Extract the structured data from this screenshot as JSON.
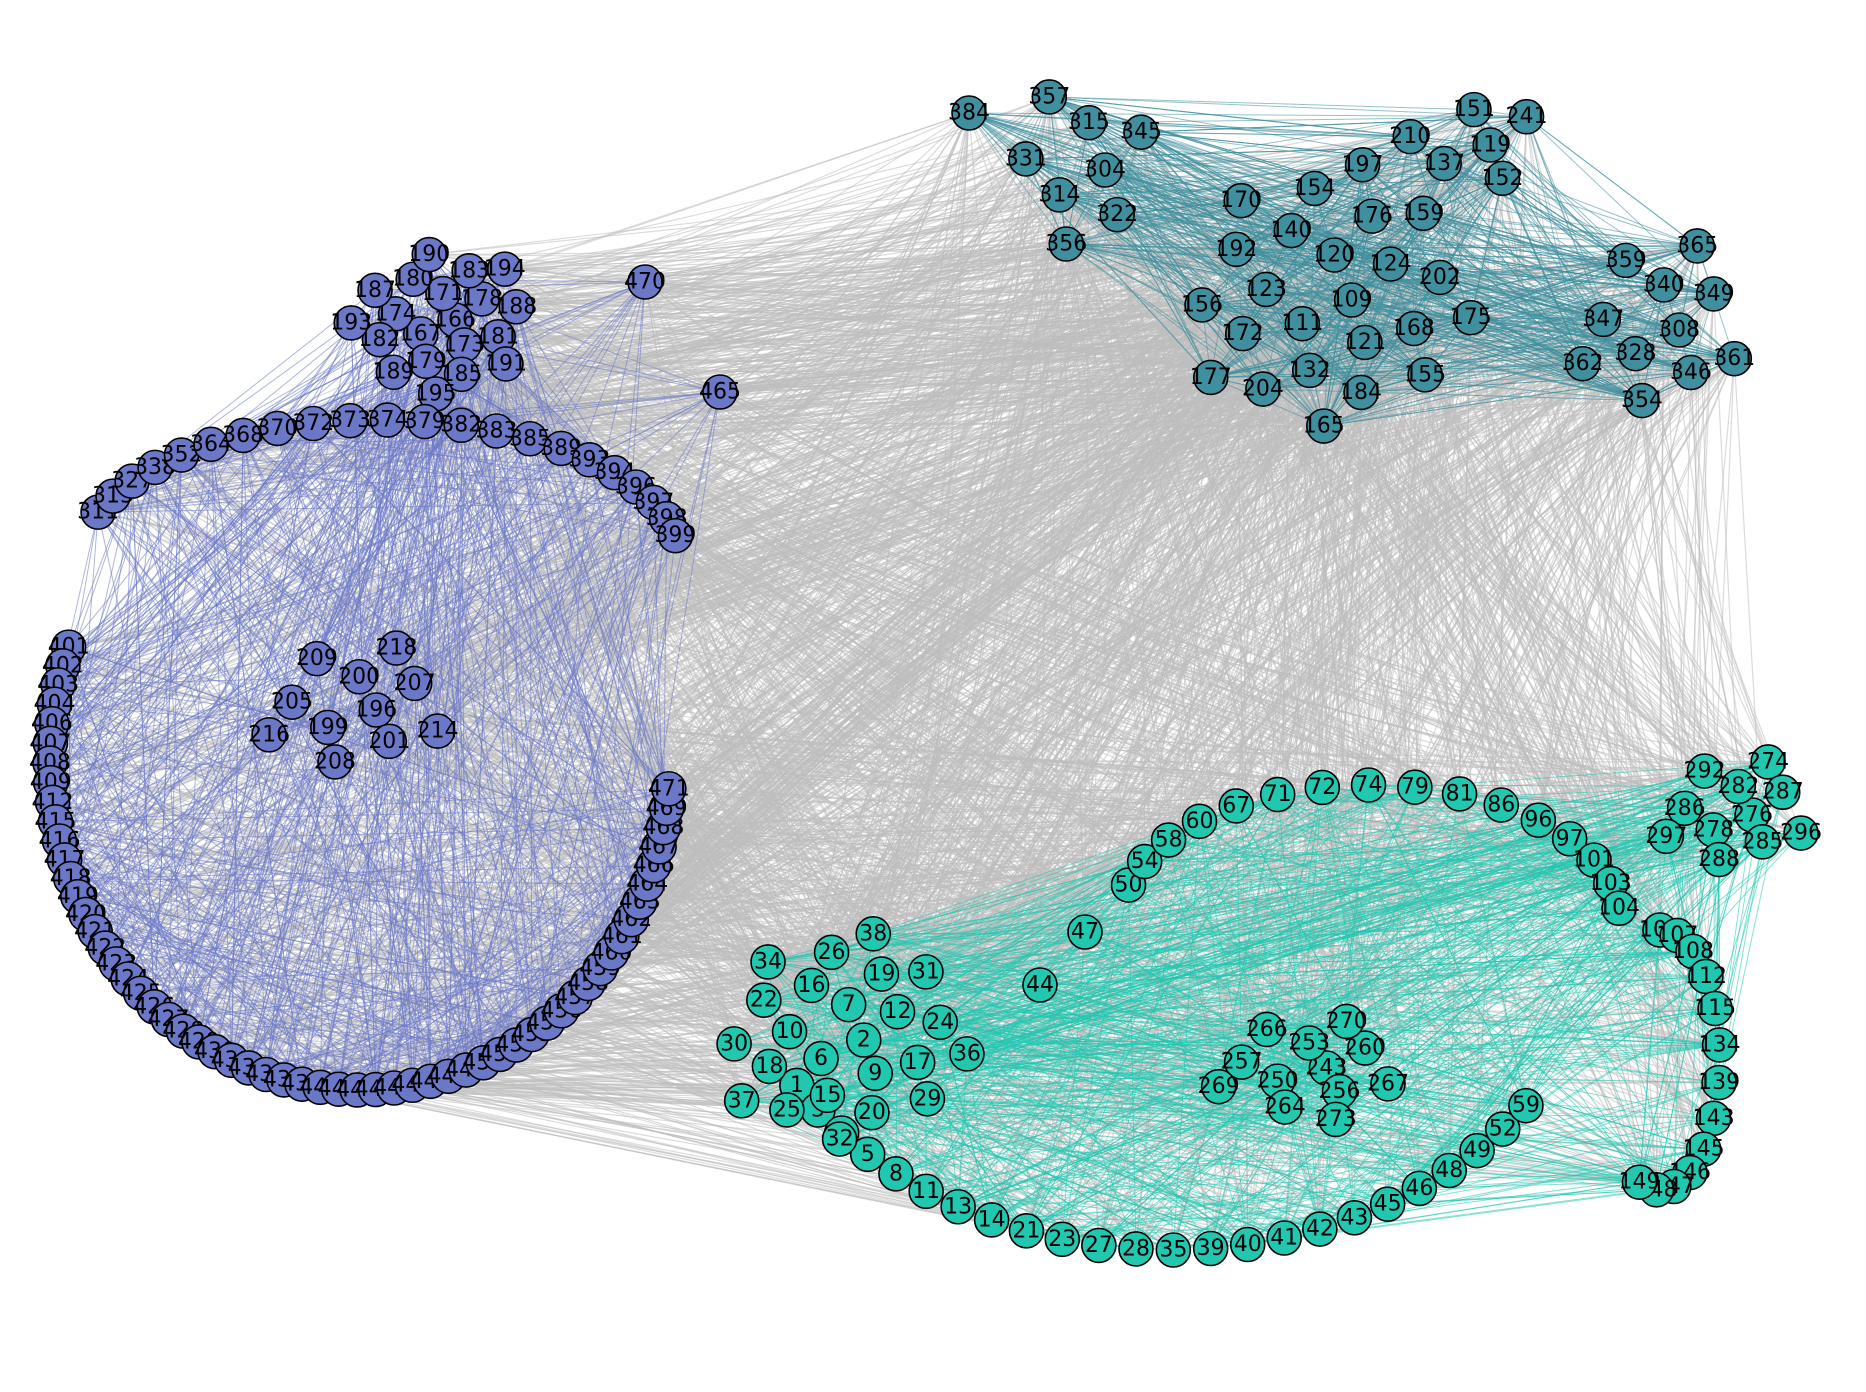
{
  "colors": {
    "background": "#ffffff",
    "between_cluster_edges": "#bebebe",
    "cluster_violet": "#6b78c8",
    "cluster_teal": "#3f8f9e",
    "cluster_turquoise": "#22c7b0",
    "node_outline": "#000000",
    "label_text": "#000000"
  },
  "graph": {
    "clusters": [
      {
        "id": "violet",
        "label_range": [
          166,
          200
        ],
        "anchor_label": "470"
      },
      {
        "id": "teal",
        "label_range": [
          109,
          165
        ],
        "anchor_label": "384"
      },
      {
        "id": "turquoise",
        "label_range": [
          1,
          108
        ],
        "anchor_label": "44"
      }
    ],
    "nodes": [
      {
        "label": "1",
        "c": 2
      },
      {
        "label": "2",
        "c": 2
      },
      {
        "label": "3",
        "c": 2
      },
      {
        "label": "4",
        "c": 2
      },
      {
        "label": "5",
        "c": 2
      },
      {
        "label": "6",
        "c": 2
      },
      {
        "label": "7",
        "c": 2
      },
      {
        "label": "8",
        "c": 2
      },
      {
        "label": "9",
        "c": 2
      },
      {
        "label": "10",
        "c": 2
      },
      {
        "label": "11",
        "c": 2
      },
      {
        "label": "12",
        "c": 2
      },
      {
        "label": "13",
        "c": 2
      },
      {
        "label": "14",
        "c": 2
      },
      {
        "label": "15",
        "c": 2
      },
      {
        "label": "16",
        "c": 2
      },
      {
        "label": "17",
        "c": 2
      },
      {
        "label": "18",
        "c": 2
      },
      {
        "label": "19",
        "c": 2
      },
      {
        "label": "20",
        "c": 2
      },
      {
        "label": "21",
        "c": 2
      },
      {
        "label": "22",
        "c": 2
      },
      {
        "label": "23",
        "c": 2
      },
      {
        "label": "24",
        "c": 2
      },
      {
        "label": "25",
        "c": 2
      },
      {
        "label": "26",
        "c": 2
      },
      {
        "label": "27",
        "c": 2
      },
      {
        "label": "28",
        "c": 2
      },
      {
        "label": "29",
        "c": 2
      },
      {
        "label": "30",
        "c": 2
      },
      {
        "label": "31",
        "c": 2
      },
      {
        "label": "32",
        "c": 2
      },
      {
        "label": "34",
        "c": 2
      },
      {
        "label": "35",
        "c": 2
      },
      {
        "label": "36",
        "c": 2
      },
      {
        "label": "37",
        "c": 2
      },
      {
        "label": "38",
        "c": 2
      },
      {
        "label": "39",
        "c": 2
      },
      {
        "label": "40",
        "c": 2
      },
      {
        "label": "41",
        "c": 2
      },
      {
        "label": "42",
        "c": 2
      },
      {
        "label": "43",
        "c": 2
      },
      {
        "label": "44",
        "c": 2
      },
      {
        "label": "45",
        "c": 2
      },
      {
        "label": "46",
        "c": 2
      },
      {
        "label": "47",
        "c": 2
      },
      {
        "label": "48",
        "c": 2
      },
      {
        "label": "49",
        "c": 2
      },
      {
        "label": "50",
        "c": 2
      },
      {
        "label": "52",
        "c": 2
      },
      {
        "label": "54",
        "c": 2
      },
      {
        "label": "58",
        "c": 2
      },
      {
        "label": "59",
        "c": 2
      },
      {
        "label": "60",
        "c": 2
      },
      {
        "label": "67",
        "c": 2
      },
      {
        "label": "71",
        "c": 2
      },
      {
        "label": "72",
        "c": 2
      },
      {
        "label": "74",
        "c": 2
      },
      {
        "label": "79",
        "c": 2
      },
      {
        "label": "81",
        "c": 2
      },
      {
        "label": "86",
        "c": 2
      },
      {
        "label": "96",
        "c": 2
      },
      {
        "label": "97",
        "c": 2
      },
      {
        "label": "101",
        "c": 2
      },
      {
        "label": "103",
        "c": 2
      },
      {
        "label": "104",
        "c": 2
      },
      {
        "label": "106",
        "c": 2
      },
      {
        "label": "107",
        "c": 2
      },
      {
        "label": "108",
        "c": 2
      },
      {
        "label": "112",
        "c": 2
      },
      {
        "label": "115",
        "c": 2
      },
      {
        "label": "134",
        "c": 2
      },
      {
        "label": "139",
        "c": 2
      },
      {
        "label": "143",
        "c": 2
      },
      {
        "label": "145",
        "c": 2
      },
      {
        "label": "146",
        "c": 2
      },
      {
        "label": "147",
        "c": 2
      },
      {
        "label": "148",
        "c": 2
      },
      {
        "label": "149",
        "c": 2
      },
      {
        "label": "243",
        "c": 2
      },
      {
        "label": "250",
        "c": 2
      },
      {
        "label": "253",
        "c": 2
      },
      {
        "label": "256",
        "c": 2
      },
      {
        "label": "257",
        "c": 2
      },
      {
        "label": "260",
        "c": 2
      },
      {
        "label": "264",
        "c": 2
      },
      {
        "label": "266",
        "c": 2
      },
      {
        "label": "267",
        "c": 2
      },
      {
        "label": "269",
        "c": 2
      },
      {
        "label": "270",
        "c": 2
      },
      {
        "label": "273",
        "c": 2
      },
      {
        "label": "274",
        "c": 2
      },
      {
        "label": "276",
        "c": 2
      },
      {
        "label": "278",
        "c": 2
      },
      {
        "label": "282",
        "c": 2
      },
      {
        "label": "285",
        "c": 2
      },
      {
        "label": "286",
        "c": 2
      },
      {
        "label": "287",
        "c": 2
      },
      {
        "label": "288",
        "c": 2
      },
      {
        "label": "292",
        "c": 2
      },
      {
        "label": "296",
        "c": 2
      },
      {
        "label": "297",
        "c": 2
      },
      {
        "label": "109",
        "c": 1
      },
      {
        "label": "111",
        "c": 1
      },
      {
        "label": "119",
        "c": 1
      },
      {
        "label": "120",
        "c": 1
      },
      {
        "label": "121",
        "c": 1
      },
      {
        "label": "123",
        "c": 1
      },
      {
        "label": "124",
        "c": 1
      },
      {
        "label": "132",
        "c": 1
      },
      {
        "label": "137",
        "c": 1
      },
      {
        "label": "140",
        "c": 1
      },
      {
        "label": "151",
        "c": 1
      },
      {
        "label": "152",
        "c": 1
      },
      {
        "label": "154",
        "c": 1
      },
      {
        "label": "155",
        "c": 1
      },
      {
        "label": "156",
        "c": 1
      },
      {
        "label": "159",
        "c": 1
      },
      {
        "label": "165",
        "c": 1
      },
      {
        "label": "168",
        "c": 1
      },
      {
        "label": "170",
        "c": 1
      },
      {
        "label": "172",
        "c": 1
      },
      {
        "label": "175",
        "c": 1
      },
      {
        "label": "176",
        "c": 1
      },
      {
        "label": "177",
        "c": 1
      },
      {
        "label": "184",
        "c": 1
      },
      {
        "label": "192",
        "c": 1
      },
      {
        "label": "197",
        "c": 1
      },
      {
        "label": "202",
        "c": 1
      },
      {
        "label": "204",
        "c": 1
      },
      {
        "label": "210",
        "c": 1
      },
      {
        "label": "241",
        "c": 1
      },
      {
        "label": "304",
        "c": 1
      },
      {
        "label": "308",
        "c": 1
      },
      {
        "label": "314",
        "c": 1
      },
      {
        "label": "315",
        "c": 1
      },
      {
        "label": "322",
        "c": 1
      },
      {
        "label": "328",
        "c": 1
      },
      {
        "label": "331",
        "c": 1
      },
      {
        "label": "340",
        "c": 1
      },
      {
        "label": "345",
        "c": 1
      },
      {
        "label": "346",
        "c": 1
      },
      {
        "label": "347",
        "c": 1
      },
      {
        "label": "349",
        "c": 1
      },
      {
        "label": "354",
        "c": 1
      },
      {
        "label": "356",
        "c": 1
      },
      {
        "label": "357",
        "c": 1
      },
      {
        "label": "359",
        "c": 1
      },
      {
        "label": "361",
        "c": 1
      },
      {
        "label": "362",
        "c": 1
      },
      {
        "label": "365",
        "c": 1
      },
      {
        "label": "384",
        "c": 1
      },
      {
        "label": "166",
        "c": 0
      },
      {
        "label": "167",
        "c": 0
      },
      {
        "label": "171",
        "c": 0
      },
      {
        "label": "173",
        "c": 0
      },
      {
        "label": "174",
        "c": 0
      },
      {
        "label": "178",
        "c": 0
      },
      {
        "label": "179",
        "c": 0
      },
      {
        "label": "180",
        "c": 0
      },
      {
        "label": "181",
        "c": 0
      },
      {
        "label": "182",
        "c": 0
      },
      {
        "label": "183",
        "c": 0
      },
      {
        "label": "185",
        "c": 0
      },
      {
        "label": "187",
        "c": 0
      },
      {
        "label": "188",
        "c": 0
      },
      {
        "label": "189",
        "c": 0
      },
      {
        "label": "190",
        "c": 0
      },
      {
        "label": "191",
        "c": 0
      },
      {
        "label": "193",
        "c": 0
      },
      {
        "label": "194",
        "c": 0
      },
      {
        "label": "195",
        "c": 0
      },
      {
        "label": "196",
        "c": 0
      },
      {
        "label": "199",
        "c": 0
      },
      {
        "label": "200",
        "c": 0
      },
      {
        "label": "201",
        "c": 0
      },
      {
        "label": "205",
        "c": 0
      },
      {
        "label": "207",
        "c": 0
      },
      {
        "label": "208",
        "c": 0
      },
      {
        "label": "209",
        "c": 0
      },
      {
        "label": "214",
        "c": 0
      },
      {
        "label": "216",
        "c": 0
      },
      {
        "label": "218",
        "c": 0
      },
      {
        "label": "311",
        "c": 0
      },
      {
        "label": "313",
        "c": 0
      },
      {
        "label": "327",
        "c": 0
      },
      {
        "label": "338",
        "c": 0
      },
      {
        "label": "352",
        "c": 0
      },
      {
        "label": "364",
        "c": 0
      },
      {
        "label": "368",
        "c": 0
      },
      {
        "label": "370",
        "c": 0
      },
      {
        "label": "372",
        "c": 0
      },
      {
        "label": "373",
        "c": 0
      },
      {
        "label": "374",
        "c": 0
      },
      {
        "label": "379",
        "c": 0
      },
      {
        "label": "382",
        "c": 0
      },
      {
        "label": "383",
        "c": 0
      },
      {
        "label": "385",
        "c": 0
      },
      {
        "label": "389",
        "c": 0
      },
      {
        "label": "393",
        "c": 0
      },
      {
        "label": "394",
        "c": 0
      },
      {
        "label": "396",
        "c": 0
      },
      {
        "label": "397",
        "c": 0
      },
      {
        "label": "398",
        "c": 0
      },
      {
        "label": "399",
        "c": 0
      },
      {
        "label": "401",
        "c": 0
      },
      {
        "label": "402",
        "c": 0
      },
      {
        "label": "403",
        "c": 0
      },
      {
        "label": "404",
        "c": 0
      },
      {
        "label": "406",
        "c": 0
      },
      {
        "label": "407",
        "c": 0
      },
      {
        "label": "408",
        "c": 0
      },
      {
        "label": "409",
        "c": 0
      },
      {
        "label": "412",
        "c": 0
      },
      {
        "label": "415",
        "c": 0
      },
      {
        "label": "416",
        "c": 0
      },
      {
        "label": "417",
        "c": 0
      },
      {
        "label": "418",
        "c": 0
      },
      {
        "label": "419",
        "c": 0
      },
      {
        "label": "420",
        "c": 0
      },
      {
        "label": "421",
        "c": 0
      },
      {
        "label": "422",
        "c": 0
      },
      {
        "label": "423",
        "c": 0
      },
      {
        "label": "424",
        "c": 0
      },
      {
        "label": "425",
        "c": 0
      },
      {
        "label": "426",
        "c": 0
      },
      {
        "label": "427",
        "c": 0
      },
      {
        "label": "428",
        "c": 0
      },
      {
        "label": "429",
        "c": 0
      },
      {
        "label": "430",
        "c": 0
      },
      {
        "label": "431",
        "c": 0
      },
      {
        "label": "434",
        "c": 0
      },
      {
        "label": "436",
        "c": 0
      },
      {
        "label": "437",
        "c": 0
      },
      {
        "label": "438",
        "c": 0
      },
      {
        "label": "440",
        "c": 0
      },
      {
        "label": "441",
        "c": 0
      },
      {
        "label": "443",
        "c": 0
      },
      {
        "label": "444",
        "c": 0
      },
      {
        "label": "445",
        "c": 0
      },
      {
        "label": "446",
        "c": 0
      },
      {
        "label": "447",
        "c": 0
      },
      {
        "label": "448",
        "c": 0
      },
      {
        "label": "449",
        "c": 0
      },
      {
        "label": "450",
        "c": 0
      },
      {
        "label": "451",
        "c": 0
      },
      {
        "label": "452",
        "c": 0
      },
      {
        "label": "453",
        "c": 0
      },
      {
        "label": "454",
        "c": 0
      },
      {
        "label": "456",
        "c": 0
      },
      {
        "label": "457",
        "c": 0
      },
      {
        "label": "458",
        "c": 0
      },
      {
        "label": "459",
        "c": 0
      },
      {
        "label": "460",
        "c": 0
      },
      {
        "label": "461",
        "c": 0
      },
      {
        "label": "462",
        "c": 0
      },
      {
        "label": "463",
        "c": 0
      },
      {
        "label": "464",
        "c": 0
      },
      {
        "label": "465",
        "c": 0
      },
      {
        "label": "466",
        "c": 0
      },
      {
        "label": "467",
        "c": 0
      },
      {
        "label": "468",
        "c": 0
      },
      {
        "label": "469",
        "c": 0
      },
      {
        "label": "470",
        "c": 0
      },
      {
        "label": "471",
        "c": 0
      }
    ]
  }
}
